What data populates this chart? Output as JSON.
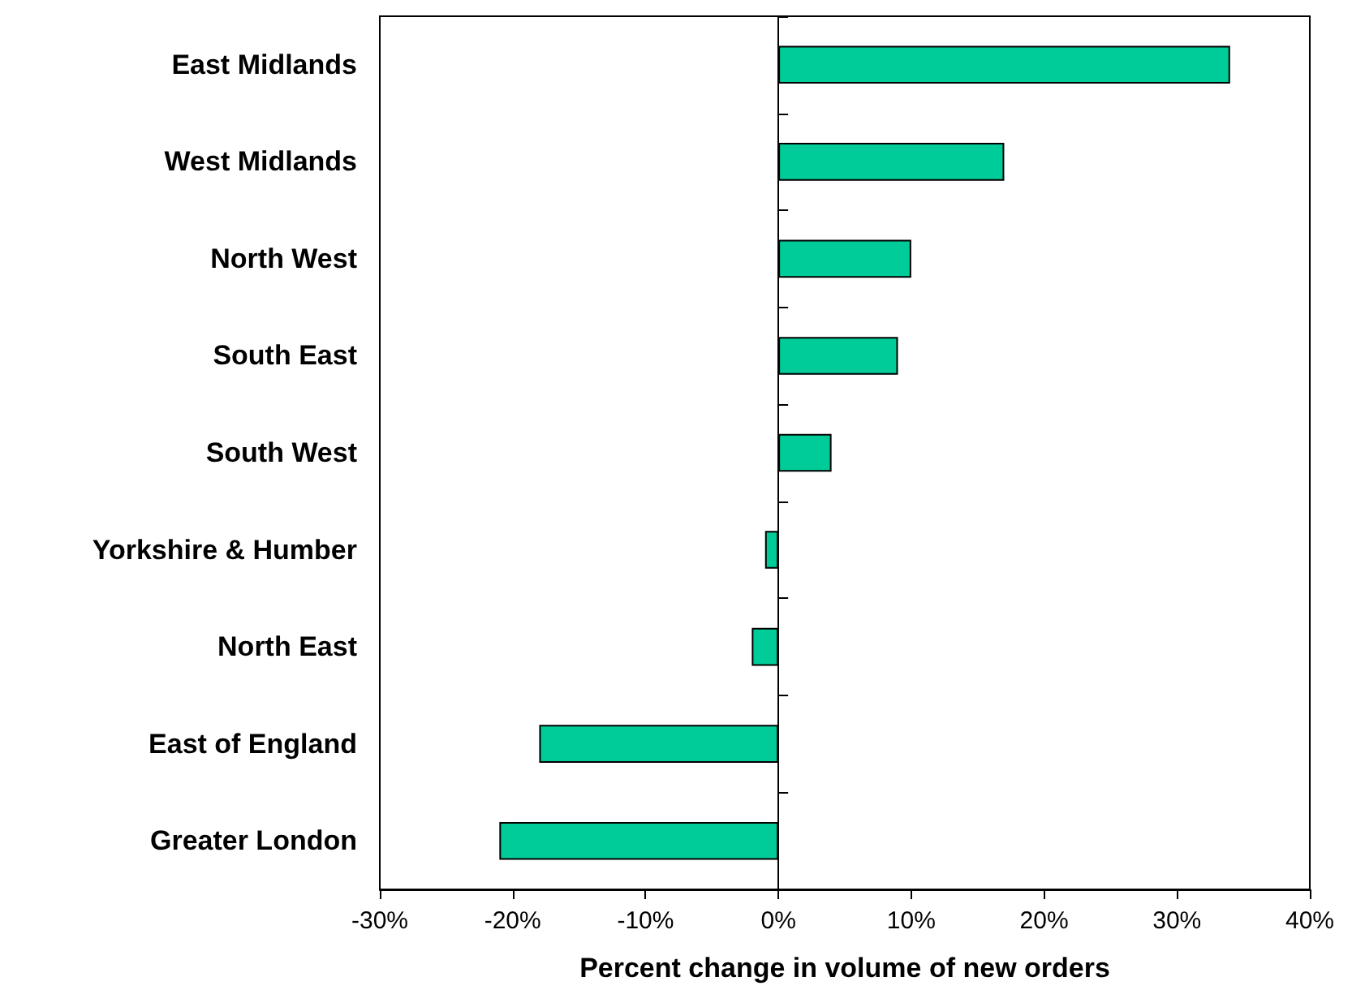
{
  "chart_data": {
    "type": "bar",
    "orientation": "horizontal",
    "xlabel": "Percent change in volume of new orders",
    "categories": [
      "East Midlands",
      "West Midlands",
      "North West",
      "South East",
      "South West",
      "Yorkshire & Humber",
      "North East",
      "East of England",
      "Greater London"
    ],
    "values": [
      34,
      17,
      10,
      9,
      4,
      -1,
      -2,
      -18,
      -21
    ],
    "color": "#00cc99",
    "xlim": [
      -30,
      40
    ],
    "xticks": [
      {
        "value": -30,
        "label": "-30%"
      },
      {
        "value": -20,
        "label": "-20%"
      },
      {
        "value": -10,
        "label": "-10%"
      },
      {
        "value": 0,
        "label": "0%"
      },
      {
        "value": 10,
        "label": "10%"
      },
      {
        "value": 20,
        "label": "20%"
      },
      {
        "value": 30,
        "label": "30%"
      },
      {
        "value": 40,
        "label": "40%"
      }
    ]
  }
}
